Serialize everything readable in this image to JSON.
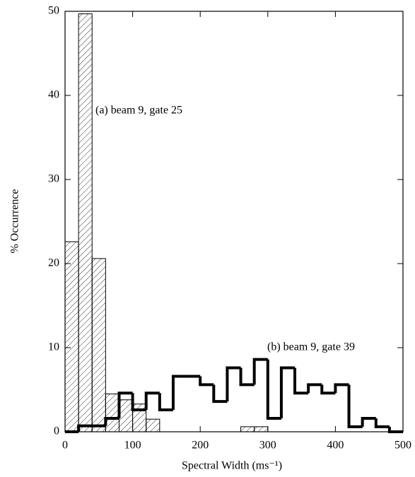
{
  "chart_data": {
    "type": "histogram",
    "xlabel": "Spectral Width (ms⁻¹)",
    "ylabel": "% Occurrence",
    "bins": [
      0,
      20,
      40,
      60,
      80,
      100,
      120,
      140,
      160,
      180,
      200,
      220,
      240,
      260,
      280,
      300,
      320,
      340,
      360,
      380,
      400,
      420,
      440,
      460,
      480,
      500
    ],
    "series": [
      {
        "name": "(a) beam 9, gate 25",
        "color": "#000000",
        "style": "hatched",
        "values": [
          22.6,
          49.7,
          20.6,
          4.5,
          3.8,
          3.3,
          1.5,
          0,
          0,
          0,
          0,
          0,
          0,
          0.6,
          0.6,
          0,
          0,
          0,
          0,
          0,
          0,
          0,
          0,
          0,
          0
        ]
      },
      {
        "name": "(b) beam 9, gate 39",
        "color": "#000000",
        "style": "outline",
        "values": [
          0,
          0.7,
          0.7,
          1.6,
          4.6,
          2.6,
          4.6,
          2.6,
          6.6,
          6.6,
          5.6,
          3.6,
          7.6,
          5.6,
          8.6,
          1.6,
          7.6,
          4.6,
          5.6,
          4.6,
          5.6,
          0.6,
          1.6,
          0.6,
          0
        ]
      }
    ],
    "xlim": [
      0,
      500
    ],
    "xticks": [
      0,
      100,
      200,
      300,
      400,
      500
    ],
    "ylim": [
      0,
      50
    ],
    "yticks": [
      0,
      10,
      20,
      30,
      40,
      50
    ]
  }
}
